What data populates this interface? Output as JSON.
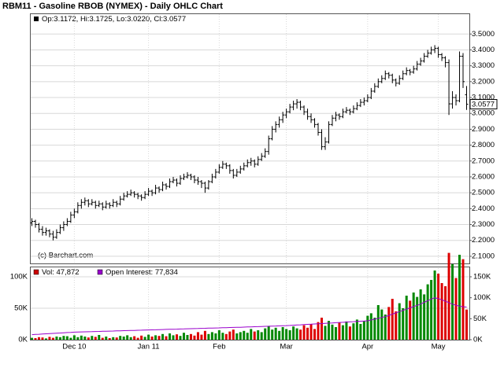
{
  "chart_data": [
    {
      "type": "ohlc",
      "title": "RBM11 - Gasoline RBOB (NYMEX) - Daily OHLC Chart",
      "legend": "Op:3.1172, Hi:3.1725, Lo:3.0220, Cl:3.0577",
      "credit": "(c) Barchart.com",
      "last_label": "3.0577",
      "color": "#000000",
      "grid": true,
      "ylim": [
        2.055,
        3.63
      ],
      "yticks": [
        {
          "value": 2.1,
          "label": "2.1000"
        },
        {
          "value": 2.2,
          "label": "2.2000"
        },
        {
          "value": 2.3,
          "label": "2.3000"
        },
        {
          "value": 2.4,
          "label": "2.4000"
        },
        {
          "value": 2.5,
          "label": "2.5000"
        },
        {
          "value": 2.6,
          "label": "2.6000"
        },
        {
          "value": 2.7,
          "label": "2.7000"
        },
        {
          "value": 2.8,
          "label": "2.8000"
        },
        {
          "value": 2.9,
          "label": "2.9000"
        },
        {
          "value": 3.0,
          "label": "3.0000"
        },
        {
          "value": 3.1,
          "label": "3.1000"
        },
        {
          "value": 3.2,
          "label": "3.2000"
        },
        {
          "value": 3.3,
          "label": "3.3000"
        },
        {
          "value": 3.4,
          "label": "3.4000"
        },
        {
          "value": 3.5,
          "label": "3.5000"
        }
      ],
      "categories": [
        null,
        null,
        null,
        null,
        null,
        null,
        null,
        null,
        null,
        null,
        null,
        null,
        "Dec 10",
        null,
        null,
        null,
        null,
        null,
        null,
        null,
        null,
        null,
        null,
        null,
        null,
        null,
        null,
        null,
        null,
        null,
        null,
        null,
        null,
        "Jan 11",
        null,
        null,
        null,
        null,
        null,
        null,
        null,
        null,
        null,
        null,
        null,
        null,
        null,
        null,
        null,
        null,
        null,
        null,
        null,
        "Feb",
        null,
        null,
        null,
        null,
        null,
        null,
        null,
        null,
        null,
        null,
        null,
        null,
        null,
        null,
        null,
        null,
        null,
        null,
        "Mar",
        null,
        null,
        null,
        null,
        null,
        null,
        null,
        null,
        null,
        null,
        null,
        null,
        null,
        null,
        null,
        null,
        null,
        null,
        null,
        null,
        null,
        null,
        "Apr",
        null,
        null,
        null,
        null,
        null,
        null,
        null,
        null,
        null,
        null,
        null,
        null,
        null,
        null,
        null,
        null,
        null,
        null,
        null,
        "May",
        null,
        null,
        null,
        null,
        null,
        null,
        null,
        null
      ],
      "open": [
        2.31,
        2.32,
        2.3,
        2.27,
        2.25,
        2.26,
        2.24,
        2.22,
        2.25,
        2.28,
        2.3,
        2.32,
        2.36,
        2.38,
        2.42,
        2.44,
        2.45,
        2.43,
        2.44,
        2.42,
        2.43,
        2.41,
        2.43,
        2.42,
        2.44,
        2.43,
        2.46,
        2.48,
        2.49,
        2.5,
        2.49,
        2.48,
        2.47,
        2.49,
        2.51,
        2.5,
        2.53,
        2.52,
        2.55,
        2.54,
        2.57,
        2.58,
        2.56,
        2.59,
        2.6,
        2.61,
        2.6,
        2.58,
        2.57,
        2.56,
        2.53,
        2.57,
        2.6,
        2.63,
        2.66,
        2.68,
        2.67,
        2.64,
        2.61,
        2.63,
        2.65,
        2.67,
        2.69,
        2.7,
        2.68,
        2.71,
        2.73,
        2.76,
        2.84,
        2.9,
        2.93,
        2.96,
        2.99,
        3.01,
        3.04,
        3.06,
        3.07,
        3.04,
        3.01,
        2.98,
        2.96,
        2.93,
        2.88,
        2.79,
        2.82,
        2.93,
        2.97,
        2.99,
        2.98,
        3.01,
        3.02,
        3.01,
        3.03,
        3.05,
        3.07,
        3.08,
        3.1,
        3.14,
        3.17,
        3.2,
        3.22,
        3.25,
        3.24,
        3.21,
        3.19,
        3.22,
        3.25,
        3.27,
        3.26,
        3.28,
        3.31,
        3.33,
        3.36,
        3.38,
        3.4,
        3.41,
        3.37,
        3.35,
        3.32,
        3.06,
        3.1,
        3.08,
        3.36,
        3.1172
      ],
      "high": [
        2.34,
        2.33,
        2.31,
        2.29,
        2.28,
        2.27,
        2.26,
        2.27,
        2.3,
        2.32,
        2.34,
        2.38,
        2.4,
        2.44,
        2.46,
        2.47,
        2.46,
        2.46,
        2.45,
        2.45,
        2.44,
        2.45,
        2.44,
        2.46,
        2.45,
        2.48,
        2.5,
        2.51,
        2.52,
        2.51,
        2.5,
        2.49,
        2.51,
        2.53,
        2.52,
        2.55,
        2.54,
        2.57,
        2.56,
        2.59,
        2.6,
        2.59,
        2.61,
        2.62,
        2.63,
        2.62,
        2.61,
        2.6,
        2.58,
        2.57,
        2.58,
        2.62,
        2.65,
        2.68,
        2.7,
        2.69,
        2.68,
        2.65,
        2.65,
        2.67,
        2.69,
        2.71,
        2.72,
        2.71,
        2.73,
        2.75,
        2.78,
        2.86,
        2.92,
        2.95,
        2.98,
        3.01,
        3.03,
        3.06,
        3.08,
        3.09,
        3.08,
        3.05,
        3.03,
        3.0,
        2.97,
        2.94,
        2.9,
        2.85,
        2.95,
        2.99,
        3.01,
        3.0,
        3.03,
        3.04,
        3.03,
        3.05,
        3.07,
        3.09,
        3.1,
        3.12,
        3.16,
        3.19,
        3.22,
        3.24,
        3.27,
        3.26,
        3.25,
        3.22,
        3.24,
        3.27,
        3.29,
        3.28,
        3.3,
        3.33,
        3.35,
        3.38,
        3.4,
        3.42,
        3.43,
        3.42,
        3.38,
        3.36,
        3.34,
        3.14,
        3.12,
        3.39,
        3.38,
        3.1725
      ],
      "low": [
        2.29,
        2.28,
        2.25,
        2.23,
        2.23,
        2.22,
        2.2,
        2.21,
        2.24,
        2.26,
        2.29,
        2.31,
        2.34,
        2.37,
        2.4,
        2.42,
        2.41,
        2.42,
        2.4,
        2.41,
        2.39,
        2.4,
        2.4,
        2.41,
        2.41,
        2.42,
        2.45,
        2.47,
        2.48,
        2.47,
        2.46,
        2.45,
        2.46,
        2.48,
        2.48,
        2.49,
        2.5,
        2.51,
        2.52,
        2.53,
        2.56,
        2.54,
        2.55,
        2.58,
        2.59,
        2.58,
        2.56,
        2.55,
        2.53,
        2.5,
        2.52,
        2.56,
        2.59,
        2.62,
        2.65,
        2.65,
        2.62,
        2.59,
        2.6,
        2.62,
        2.64,
        2.66,
        2.67,
        2.66,
        2.67,
        2.7,
        2.72,
        2.74,
        2.83,
        2.88,
        2.91,
        2.94,
        2.97,
        3.0,
        3.02,
        3.03,
        3.02,
        2.99,
        2.96,
        2.94,
        2.91,
        2.86,
        2.77,
        2.77,
        2.81,
        2.92,
        2.95,
        2.96,
        2.97,
        3.0,
        2.99,
        3.0,
        3.02,
        3.04,
        3.05,
        3.07,
        3.09,
        3.13,
        3.16,
        3.19,
        3.21,
        3.22,
        3.19,
        3.17,
        3.18,
        3.21,
        3.24,
        3.24,
        3.25,
        3.27,
        3.3,
        3.32,
        3.35,
        3.37,
        3.38,
        3.35,
        3.33,
        3.29,
        2.99,
        3.03,
        3.05,
        3.07,
        3.16,
        3.022
      ],
      "close": [
        2.32,
        2.3,
        2.27,
        2.25,
        2.26,
        2.24,
        2.22,
        2.25,
        2.28,
        2.3,
        2.32,
        2.36,
        2.38,
        2.42,
        2.44,
        2.45,
        2.43,
        2.44,
        2.42,
        2.43,
        2.41,
        2.43,
        2.42,
        2.44,
        2.43,
        2.46,
        2.48,
        2.49,
        2.5,
        2.49,
        2.48,
        2.47,
        2.49,
        2.51,
        2.5,
        2.53,
        2.52,
        2.55,
        2.54,
        2.57,
        2.58,
        2.56,
        2.59,
        2.6,
        2.61,
        2.6,
        2.58,
        2.57,
        2.56,
        2.53,
        2.57,
        2.6,
        2.63,
        2.66,
        2.68,
        2.67,
        2.64,
        2.61,
        2.63,
        2.65,
        2.67,
        2.69,
        2.7,
        2.68,
        2.71,
        2.73,
        2.76,
        2.84,
        2.9,
        2.93,
        2.96,
        2.99,
        3.01,
        3.04,
        3.06,
        3.07,
        3.04,
        3.01,
        2.98,
        2.96,
        2.93,
        2.88,
        2.79,
        2.82,
        2.93,
        2.97,
        2.99,
        2.98,
        3.01,
        3.02,
        3.01,
        3.03,
        3.05,
        3.07,
        3.08,
        3.1,
        3.14,
        3.17,
        3.2,
        3.22,
        3.25,
        3.24,
        3.21,
        3.19,
        3.22,
        3.25,
        3.27,
        3.26,
        3.28,
        3.31,
        3.33,
        3.36,
        3.38,
        3.4,
        3.41,
        3.37,
        3.35,
        3.32,
        3.06,
        3.1,
        3.08,
        3.36,
        3.2,
        3.0577
      ]
    },
    {
      "type": "volume",
      "grid": true,
      "ylim": [
        0,
        115000
      ],
      "yticks": [
        {
          "value": 0,
          "label": "0K"
        },
        {
          "value": 50000,
          "label": "50K"
        },
        {
          "value": 100000,
          "label": "100K"
        }
      ],
      "y2lim": [
        0,
        172500
      ],
      "y2ticks": [
        {
          "value": 0,
          "label": "0K"
        },
        {
          "value": 50000,
          "label": "50K"
        },
        {
          "value": 100000,
          "label": "100K"
        },
        {
          "value": 150000,
          "label": "150K"
        }
      ],
      "series": [
        {
          "legend": "Vol: 47,872",
          "color": "#cc0000",
          "up_color": "#008800",
          "down_color": "#dd0000",
          "values": [
            3000,
            2500,
            4000,
            3500,
            2000,
            4500,
            3000,
            5000,
            4000,
            6000,
            5500,
            3000,
            7000,
            4000,
            6500,
            5000,
            3500,
            6000,
            4500,
            7500,
            3000,
            5000,
            2500,
            4000,
            3500,
            6000,
            5000,
            7000,
            4000,
            5500,
            3000,
            6500,
            4500,
            8000,
            5000,
            7000,
            6000,
            9000,
            5500,
            10000,
            7000,
            8500,
            6000,
            11000,
            7500,
            9000,
            6500,
            12000,
            8000,
            14000,
            9000,
            12000,
            10000,
            15000,
            11000,
            9000,
            13000,
            16000,
            10000,
            12000,
            14000,
            11000,
            17000,
            13000,
            15000,
            12000,
            18000,
            22000,
            16000,
            19000,
            14000,
            20000,
            17000,
            15000,
            21000,
            18000,
            16000,
            23000,
            19000,
            25000,
            17000,
            28000,
            35000,
            22000,
            30000,
            24000,
            20000,
            27000,
            23000,
            29000,
            21000,
            26000,
            32000,
            25000,
            30000,
            38000,
            42000,
            35000,
            55000,
            48000,
            40000,
            52000,
            65000,
            45000,
            58000,
            50000,
            70000,
            62000,
            75000,
            68000,
            80000,
            72000,
            88000,
            95000,
            110000,
            105000,
            90000,
            85000,
            138000,
            120000,
            98000,
            135000,
            128000,
            47872
          ]
        },
        {
          "legend": "Open Interest: 77,834",
          "color": "#9900cc",
          "axis": "y2",
          "values": [
            12000,
            12500,
            13000,
            13500,
            14000,
            14500,
            15000,
            15500,
            16000,
            16500,
            17000,
            17500,
            18000,
            18200,
            18500,
            18700,
            19000,
            19200,
            19500,
            19700,
            20000,
            20200,
            20500,
            20700,
            21000,
            21200,
            21500,
            21700,
            22000,
            22200,
            22500,
            22700,
            23000,
            23200,
            23500,
            23700,
            24000,
            24200,
            24500,
            24700,
            25000,
            25200,
            25500,
            25700,
            26000,
            26200,
            26500,
            26700,
            27000,
            27200,
            27500,
            27700,
            28000,
            28200,
            28500,
            28700,
            29000,
            29200,
            29500,
            29700,
            30000,
            30300,
            30600,
            30900,
            31200,
            31500,
            31800,
            32100,
            32400,
            32700,
            33000,
            33300,
            33600,
            34000,
            34500,
            35000,
            35500,
            36000,
            36500,
            37000,
            37500,
            38000,
            38500,
            39000,
            39500,
            40000,
            40500,
            41000,
            41500,
            42000,
            42500,
            43000,
            43500,
            44000,
            44500,
            45000,
            47000,
            49000,
            51000,
            53000,
            55000,
            58000,
            61000,
            64000,
            67000,
            70000,
            73000,
            76000,
            79000,
            82000,
            85000,
            89000,
            93000,
            97000,
            100000,
            98000,
            95000,
            92000,
            88000,
            85000,
            82000,
            80000,
            78500,
            77834
          ]
        }
      ]
    }
  ]
}
